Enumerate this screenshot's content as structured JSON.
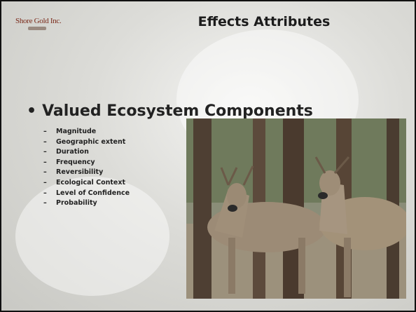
{
  "logo": {
    "text": "Shore Gold Inc."
  },
  "title": "Effects Attributes",
  "bullet": {
    "text": "Valued Ecosystem Components",
    "items": [
      "Magnitude",
      "Geographic extent",
      "Duration",
      "Frequency",
      "Reversibility",
      "Ecological Context",
      "Level of Confidence",
      "Probability"
    ]
  }
}
